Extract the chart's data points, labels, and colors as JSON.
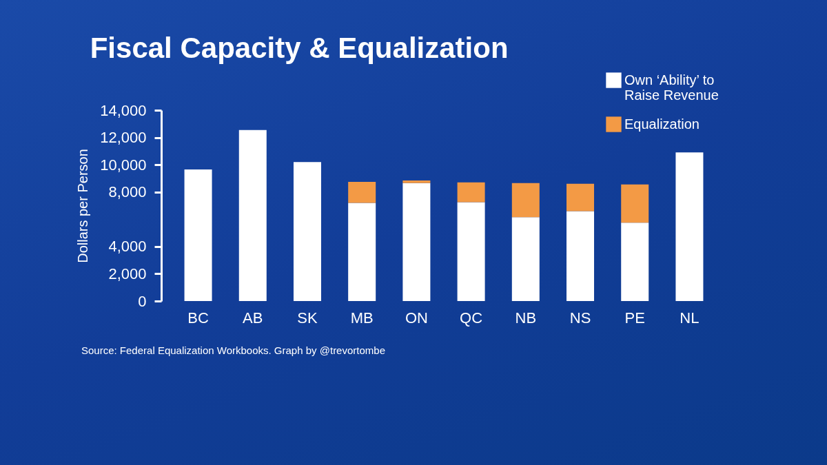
{
  "chart_data": {
    "type": "bar",
    "title": "Fiscal Capacity & Equalization",
    "ylabel": "Dollars per Person",
    "categories": [
      "BC",
      "AB",
      "SK",
      "MB",
      "ON",
      "QC",
      "NB",
      "NS",
      "PE",
      "NL"
    ],
    "stacked": true,
    "series": [
      {
        "name": "Own ‘Ability’ to Raise Revenue",
        "color": "#ffffff",
        "values": [
          9650,
          12550,
          10200,
          7200,
          8650,
          7250,
          6150,
          6600,
          5750,
          10900
        ]
      },
      {
        "name": "Equalization",
        "color": "#f39a45",
        "values": [
          null,
          null,
          null,
          1550,
          200,
          1450,
          2500,
          2000,
          2800,
          null
        ]
      }
    ],
    "ylim": [
      0,
      14000
    ],
    "yticks": [
      {
        "value": 0,
        "label": "0"
      },
      {
        "value": 2000,
        "label": "2,000"
      },
      {
        "value": 4000,
        "label": "4,000"
      },
      {
        "value": 8000,
        "label": "8,000"
      },
      {
        "value": 10000,
        "label": "10,000"
      },
      {
        "value": 12000,
        "label": "12,000"
      },
      {
        "value": 14000,
        "label": "14,000"
      }
    ],
    "legend": "top right",
    "annotations": [
      "Source: Federal Equalization Workbooks. Graph by @trevortombe"
    ]
  }
}
